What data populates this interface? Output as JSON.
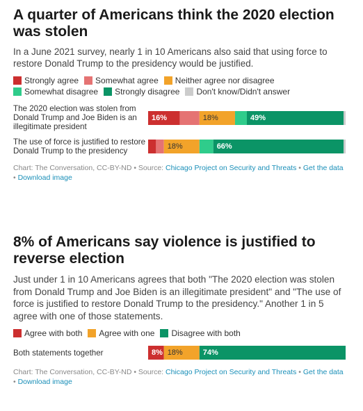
{
  "colors": {
    "strongly_agree": "#cc2f2f",
    "somewhat_agree": "#e57373",
    "neither": "#f2a32a",
    "somewhat_disagree": "#2fcc8b",
    "strongly_disagree": "#0b9466",
    "dont_know": "#cccccc",
    "link": "#1a8fb8"
  },
  "chart_data": [
    {
      "type": "bar",
      "orientation": "horizontal",
      "stacked": true,
      "title": "A quarter of Americans think the 2020 election was stolen",
      "subtitle": "In a June 2021 survey, nearly 1 in 10 Americans also said that using force to restore Donald Trump to the presidency would be justified.",
      "categories": [
        "The 2020 election was stolen from Donald Trump and Joe Biden is an illegitimate president",
        "The use of force is justified to restore Donald Trump to the presidency"
      ],
      "series": [
        {
          "name": "Strongly agree",
          "color": "#cc2f2f",
          "values": [
            16,
            4
          ],
          "labels": [
            "16%",
            ""
          ]
        },
        {
          "name": "Somewhat agree",
          "color": "#e57373",
          "values": [
            10,
            4
          ],
          "labels": [
            "",
            ""
          ]
        },
        {
          "name": "Neither agree nor disagree",
          "color": "#f2a32a",
          "values": [
            18,
            18
          ],
          "labels": [
            "18%",
            "18%"
          ]
        },
        {
          "name": "Somewhat disagree",
          "color": "#2fcc8b",
          "values": [
            6,
            7
          ],
          "labels": [
            "",
            ""
          ]
        },
        {
          "name": "Strongly disagree",
          "color": "#0b9466",
          "values": [
            49,
            66
          ],
          "labels": [
            "49%",
            "66%"
          ]
        },
        {
          "name": "Don't know/Didn't answer",
          "color": "#cccccc",
          "values": [
            1,
            1
          ],
          "labels": [
            "",
            ""
          ]
        }
      ],
      "xlim": [
        0,
        100
      ],
      "legend": "top",
      "footer": {
        "credit": "Chart: The Conversation, CC-BY-ND • Source: ",
        "source_link": "Chicago Project on Security and Threats",
        "sep": " • ",
        "get_data": "Get the data",
        "download": "Download image"
      }
    },
    {
      "type": "bar",
      "orientation": "horizontal",
      "stacked": true,
      "title": "8% of Americans say violence is justified to reverse election",
      "subtitle": "Just under 1 in 10 Americans agrees that both \"The 2020 election was stolen from Donald Trump and Joe Biden is an illegitimate president\" and \"The use of force is justified to restore Donald Trump to the presidency.\" Another 1 in 5 agree with one of those statements.",
      "categories": [
        "Both statements together"
      ],
      "series": [
        {
          "name": "Agree with both",
          "color": "#cc2f2f",
          "values": [
            8
          ],
          "labels": [
            "8%"
          ]
        },
        {
          "name": "Agree with one",
          "color": "#f2a32a",
          "values": [
            18
          ],
          "labels": [
            "18%"
          ]
        },
        {
          "name": "Disagree with both",
          "color": "#0b9466",
          "values": [
            74
          ],
          "labels": [
            "74%"
          ]
        }
      ],
      "xlim": [
        0,
        100
      ],
      "legend": "top",
      "footer": {
        "credit": "Chart: The Conversation, CC-BY-ND • Source: ",
        "source_link": "Chicago Project on Security and Threats",
        "sep": " • ",
        "get_data": "Get the data",
        "download": "Download image"
      }
    }
  ]
}
